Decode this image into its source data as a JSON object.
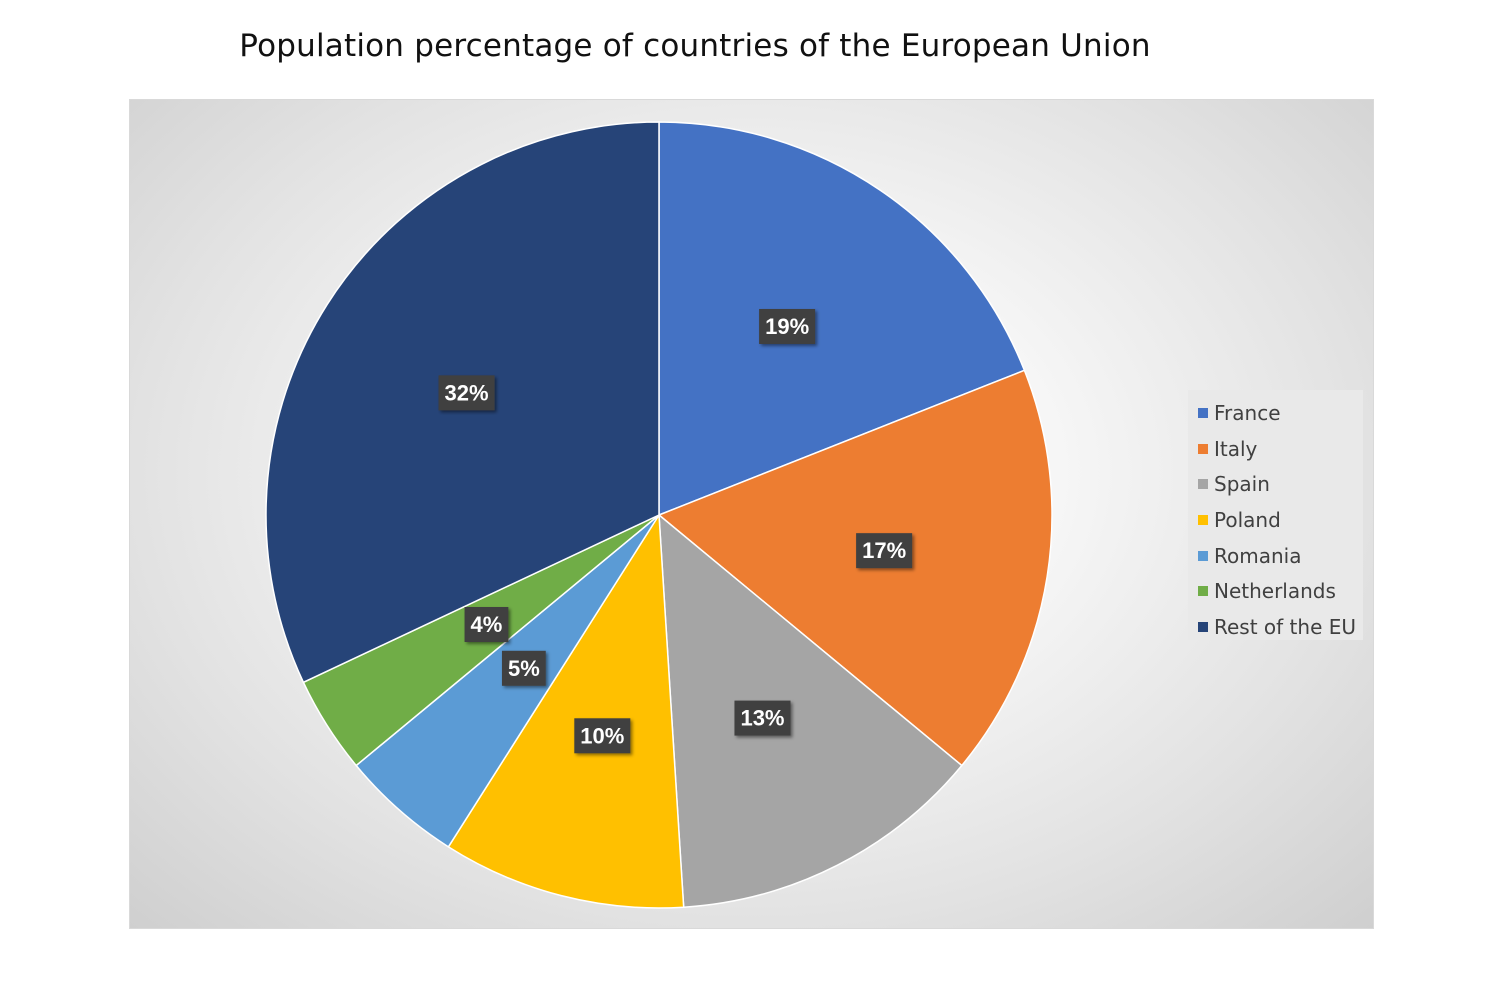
{
  "chart_data": {
    "type": "pie",
    "title": "Population percentage of countries of the European Union",
    "categories": [
      "France",
      "Italy",
      "Spain",
      "Poland",
      "Romania",
      "Netherlands",
      "Rest of the EU"
    ],
    "values": [
      19,
      17,
      13,
      10,
      5,
      4,
      32
    ],
    "labels": [
      "19%",
      "17%",
      "13%",
      "10%",
      "5%",
      "4%",
      "32%"
    ],
    "colors": [
      "#4472C4",
      "#ED7D31",
      "#A5A5A5",
      "#FFC000",
      "#5B9BD5",
      "#70AD47",
      "#264478"
    ],
    "start_angle": "12 o'clock",
    "direction": "clockwise",
    "legend": "right",
    "data_label_style": "white bold text on dark gray box"
  }
}
